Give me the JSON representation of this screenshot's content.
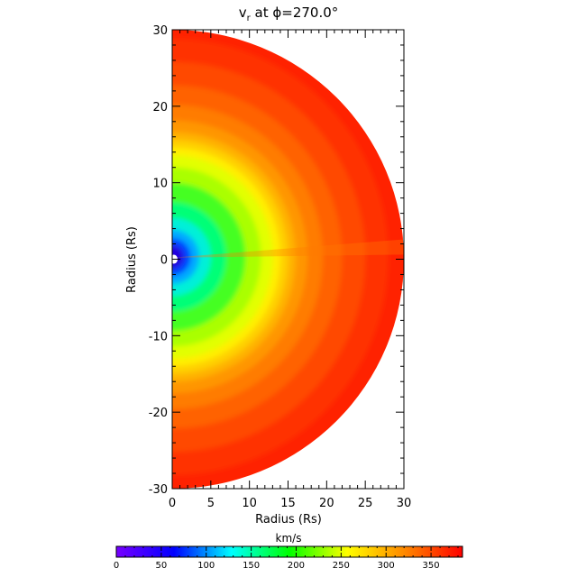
{
  "chart_data": {
    "type": "heatmap",
    "title": "v",
    "title_subscript": "r",
    "title_suffix": " at ϕ=270.0°",
    "xlabel": "Radius (Rs)",
    "ylabel": "Radius (Rs)",
    "xlim": [
      0,
      30
    ],
    "ylim": [
      -30,
      30
    ],
    "x_ticks": [
      0,
      5,
      10,
      15,
      20,
      25,
      30
    ],
    "y_ticks": [
      -30,
      -20,
      -10,
      0,
      10,
      20,
      30
    ],
    "domain": "half-disk",
    "colorbar": {
      "label": "km/s",
      "range": [
        0,
        385
      ],
      "ticks": [
        0,
        50,
        100,
        150,
        200,
        250,
        300,
        350
      ],
      "colormap": [
        "#7700ff",
        "#0000ff",
        "#00ffff",
        "#00ff00",
        "#ffff00",
        "#ff8800",
        "#ff0000"
      ]
    },
    "features": {
      "slow_region_boundary": "quasi-circular near r≈15 Rs",
      "streamer_direction_deg": 3
    }
  }
}
